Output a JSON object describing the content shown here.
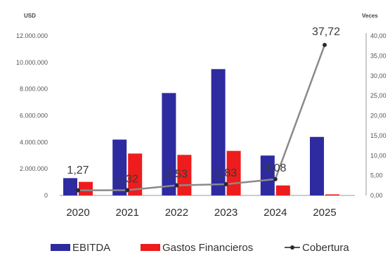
{
  "chart_data": {
    "type": "bar",
    "left_axis_unit": "USD",
    "right_axis_unit": "Veces",
    "categories": [
      "2020",
      "2021",
      "2022",
      "2023",
      "2024",
      "2025"
    ],
    "left_ticks": [
      "12.000.000",
      "10.000.000",
      "8.000.000",
      "6.000.000",
      "4.000.000",
      "2.000.000",
      "0"
    ],
    "right_ticks": [
      "40,00",
      "35,00",
      "30,00",
      "25,00",
      "20,00",
      "15,00",
      "10,00",
      "5,00",
      "0,00"
    ],
    "ylim_left": [
      0,
      12000000
    ],
    "ylim_right": [
      0,
      40
    ],
    "series": [
      {
        "name": "EBITDA",
        "kind": "bar",
        "axis": "left",
        "color": "#2e2aa0",
        "values": [
          1300000,
          4200000,
          7700000,
          9500000,
          3000000,
          4400000
        ]
      },
      {
        "name": "Gastos Financieros",
        "kind": "bar",
        "axis": "left",
        "color": "#ee1c1c",
        "values": [
          1020000,
          3150000,
          3050000,
          3350000,
          750000,
          80000
        ]
      },
      {
        "name": "Cobertura",
        "kind": "line",
        "axis": "right",
        "color": "#8a8a8a",
        "values": [
          1.27,
          1.32,
          2.53,
          2.83,
          4.08,
          37.72
        ],
        "labels": [
          "1,27",
          "1,32",
          "2,53",
          "2,83",
          "4,08",
          "37,72"
        ]
      }
    ],
    "legend": [
      {
        "label": "EBITDA",
        "color": "#2e2aa0",
        "marker": "bar"
      },
      {
        "label": "Gastos Financieros",
        "color": "#ee1c1c",
        "marker": "bar"
      },
      {
        "label": "Cobertura",
        "color": "#555555",
        "marker": "line"
      }
    ],
    "legend_position": "bottom"
  }
}
